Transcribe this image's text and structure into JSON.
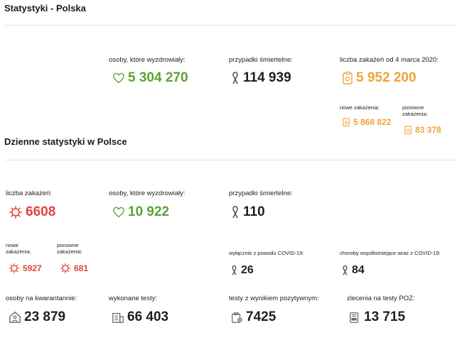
{
  "header": {
    "title": "Statystyki - Polska"
  },
  "totals": {
    "recovered": {
      "label": "osoby, które wyzdrowiały:",
      "value": "5 304 270"
    },
    "deaths": {
      "label": "przypadki śmiertelne:",
      "value": "114 939"
    },
    "infections": {
      "label": "liczba zakażeń od 4 marca 2020:",
      "value": "5 952 200"
    },
    "new_infections": {
      "label": "nowe zakażenia:",
      "value": "5 868 822"
    },
    "reinfections": {
      "label": "ponowne zakażenia:",
      "value": "83 378"
    }
  },
  "daily": {
    "title": "Dzienne statystyki w Polsce",
    "infections": {
      "label": "liczba zakażeń:",
      "value": "6608"
    },
    "recovered": {
      "label": "osoby, które wyzdrowiały:",
      "value": "10 922"
    },
    "deaths": {
      "label": "przypadki śmiertelne:",
      "value": "110"
    },
    "new_infections": {
      "label": "nowe zakażenia:",
      "value": "5927"
    },
    "reinfections": {
      "label": "ponowne zakażenia:",
      "value": "681"
    },
    "covid_only": {
      "label": "wyłącznie z powodu COVID-19:",
      "value": "26"
    },
    "comorbid": {
      "label": "choroby współistniejące wraz z COVID-19:",
      "value": "84"
    },
    "quarantine": {
      "label": "osoby na kwarantannie:",
      "value": "23 879"
    },
    "tests": {
      "label": "wykonane testy:",
      "value": "66 403"
    },
    "positive_tests": {
      "label": "testy z wynikiem pozytywnym:",
      "value": "7425"
    },
    "poz_orders": {
      "label": "zlecenia na testy POZ:",
      "value": "13 715"
    }
  },
  "colors": {
    "green": "#5aa332",
    "orange": "#f0a33a",
    "red": "#e0453c",
    "dark": "#1f1f1f"
  }
}
